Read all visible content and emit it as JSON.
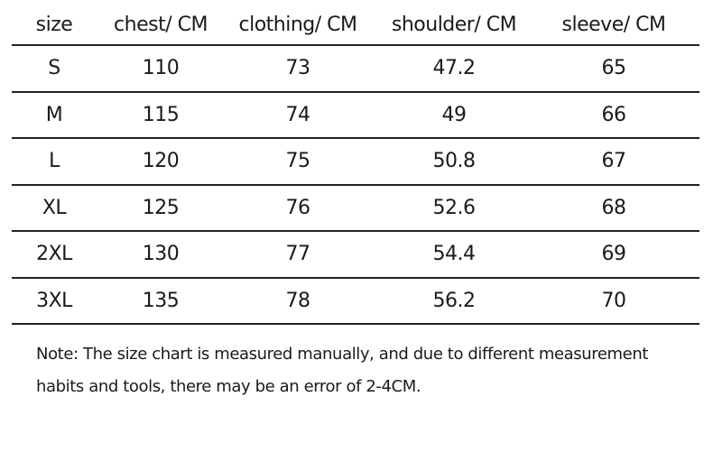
{
  "table": {
    "header": [
      "size",
      "chest/ CM",
      "clothing/ CM",
      "shoulder/ CM",
      "sleeve/ CM"
    ],
    "rows": [
      [
        "S",
        "110",
        "73",
        "47.2",
        "65"
      ],
      [
        "M",
        "115",
        "74",
        "49",
        "66"
      ],
      [
        "L",
        "120",
        "75",
        "50.8",
        "67"
      ],
      [
        "XL",
        "125",
        "76",
        "52.6",
        "68"
      ],
      [
        "2XL",
        "130",
        "77",
        "54.4",
        "69"
      ],
      [
        "3XL",
        "135",
        "78",
        "56.2",
        "70"
      ]
    ]
  },
  "note": {
    "lines": [
      "Note: The size chart is measured manually, and due to different measurement",
      "habits and tools, there may be an error of 2-4CM."
    ]
  }
}
